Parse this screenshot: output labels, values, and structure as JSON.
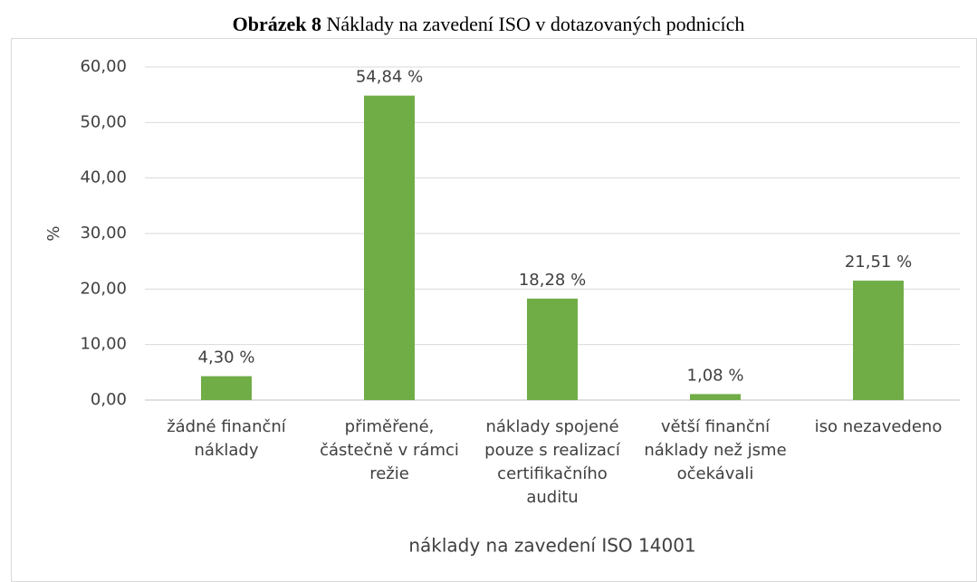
{
  "chart_data": {
    "type": "bar",
    "title_label": "Obrázek 8",
    "title": "Náklady na zavedení ISO v dotazovaných podnicích",
    "x_label": "náklady na zavedení ISO 14001",
    "y_label": "%",
    "categories": [
      "žádné finanční náklady",
      "přiměřené, částečně v rámci režie",
      "náklady spojené pouze s realizací certifikačního auditu",
      "větší finanční náklady než jsme očekávali",
      "iso nezavedeno"
    ],
    "values": [
      4.3,
      54.84,
      18.28,
      1.08,
      21.51
    ],
    "value_labels": [
      "4,30 %",
      "54,84 %",
      "18,28 %",
      "1,08 %",
      "21,51 %"
    ],
    "color": "#70ad47",
    "ylim": [
      0,
      60
    ],
    "yticks": [
      {
        "value": 0,
        "label": "0,00"
      },
      {
        "value": 10,
        "label": "10,00"
      },
      {
        "value": 20,
        "label": "20,00"
      },
      {
        "value": 30,
        "label": "30,00"
      },
      {
        "value": 40,
        "label": "40,00"
      },
      {
        "value": 50,
        "label": "50,00"
      },
      {
        "value": 60,
        "label": "60,00"
      }
    ],
    "grid": true
  }
}
